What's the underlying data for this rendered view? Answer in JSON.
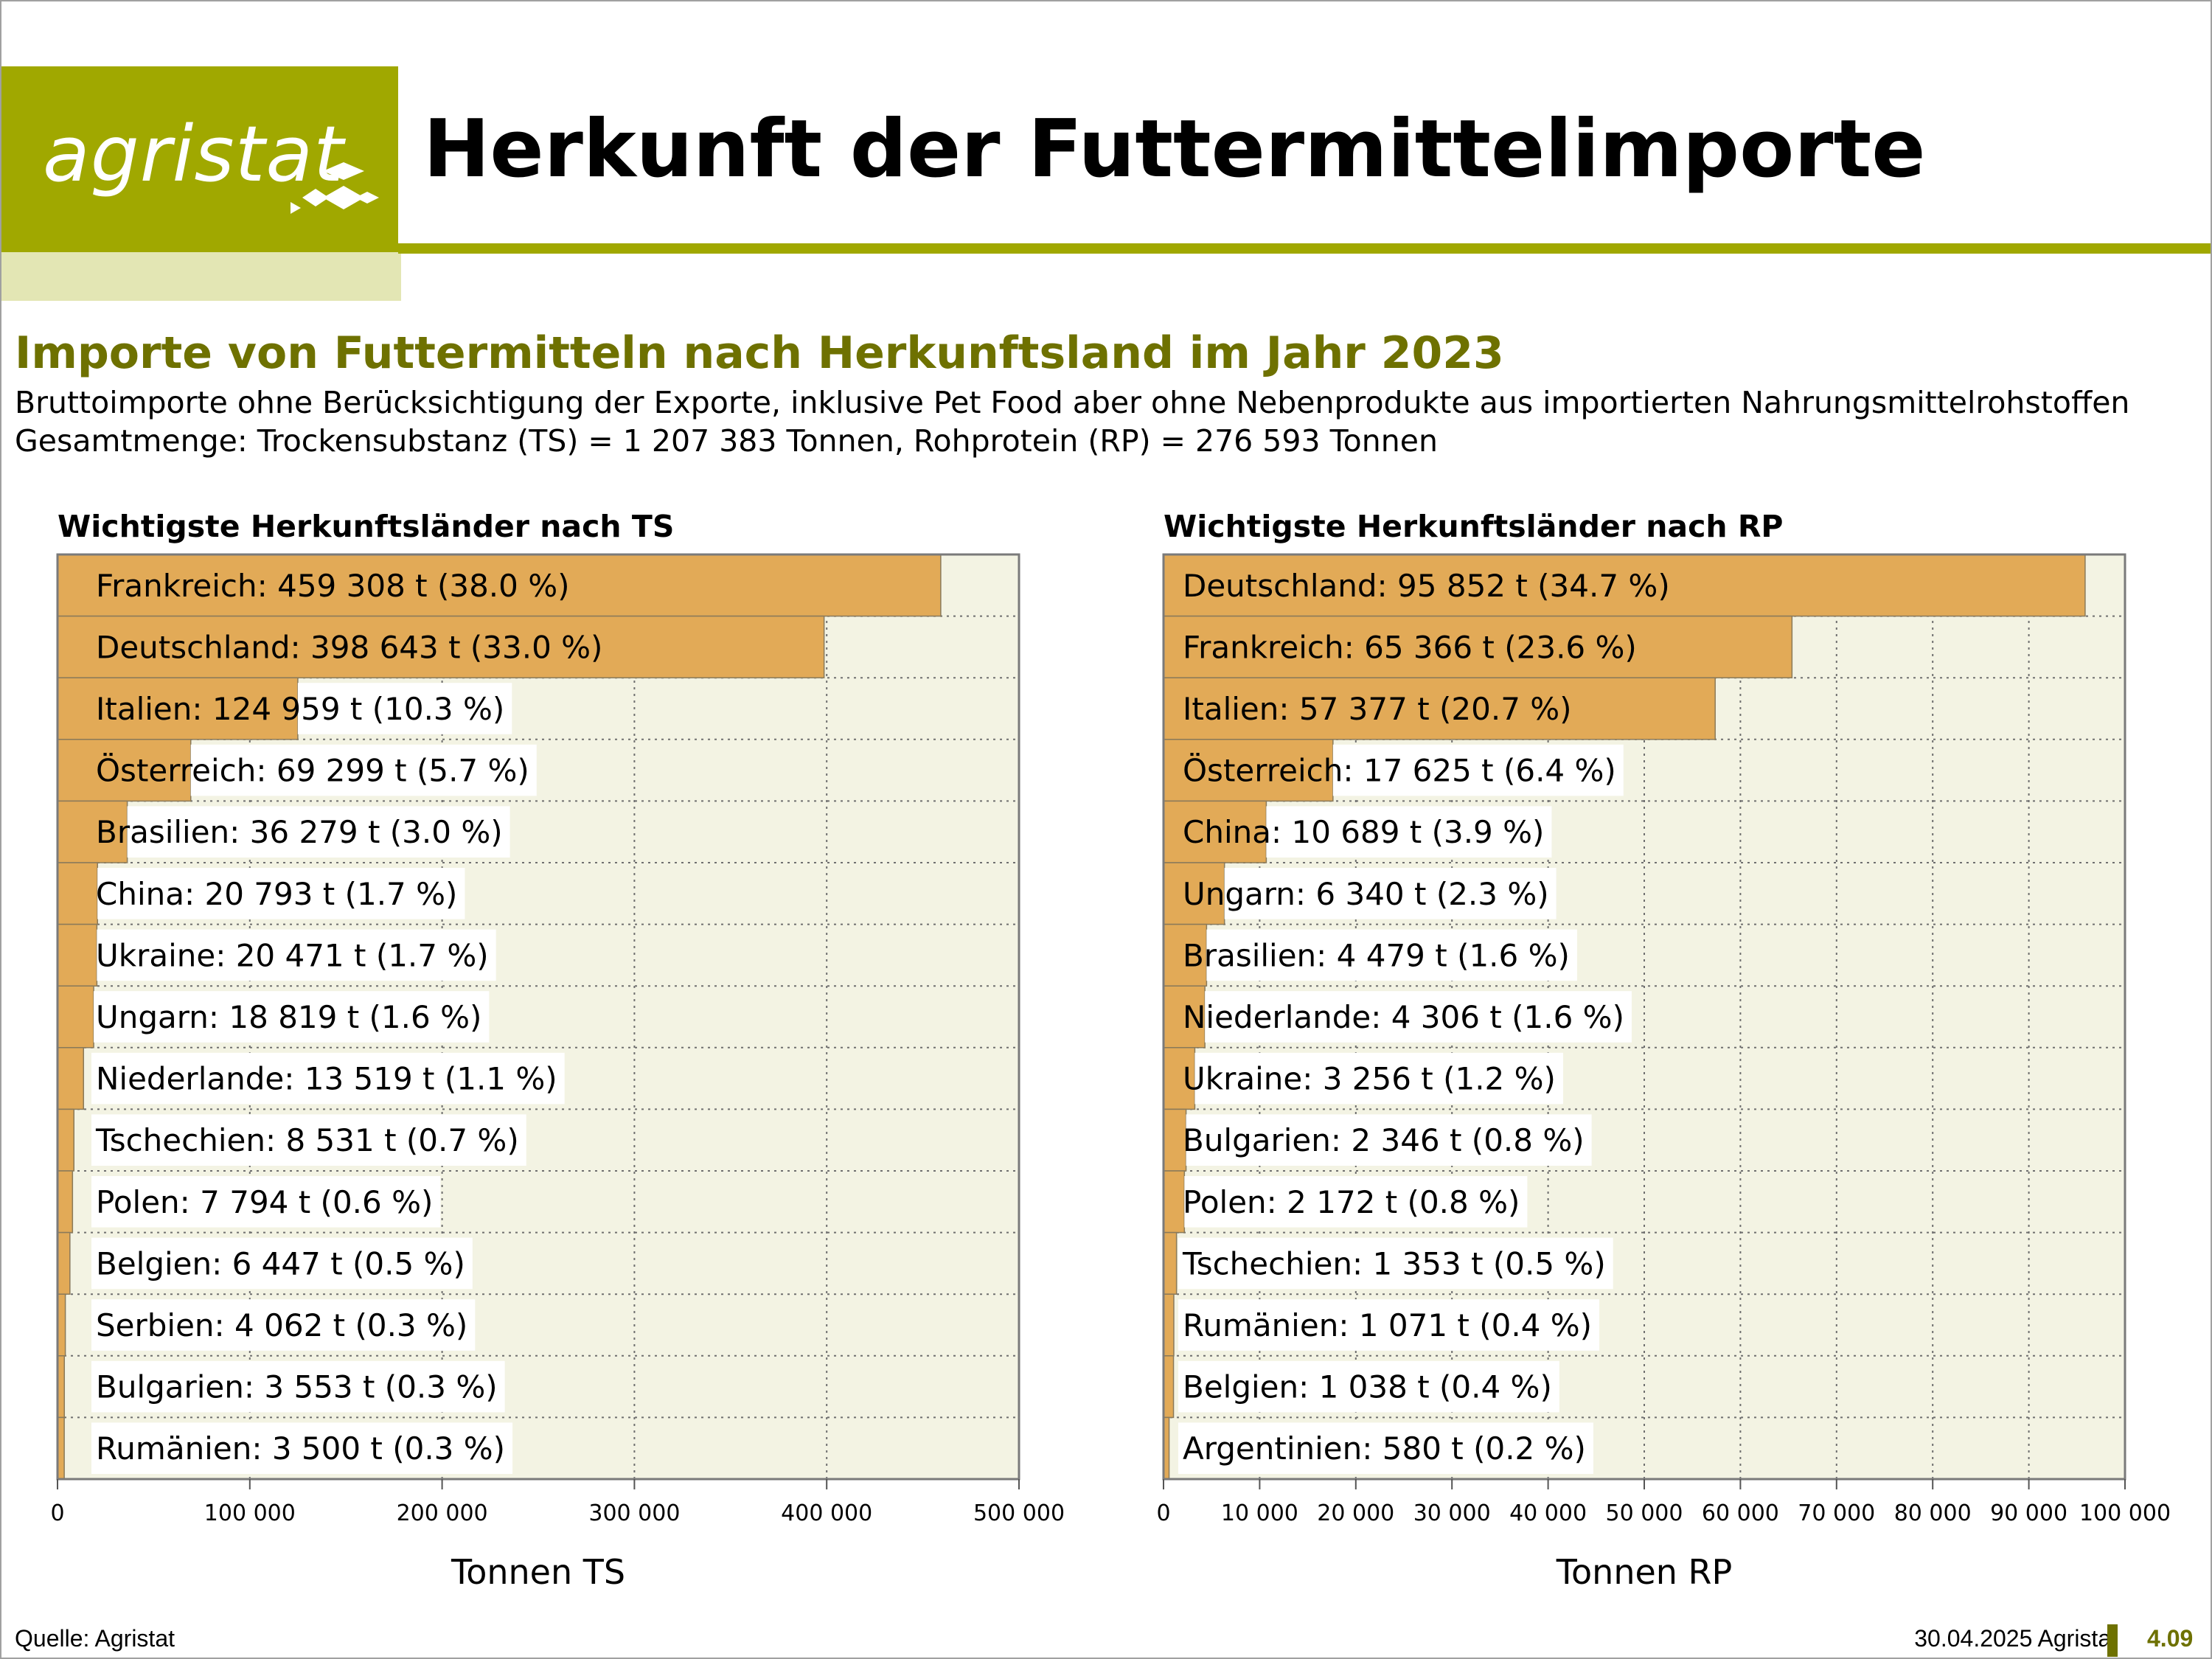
{
  "header": {
    "logo_text": "agristat",
    "title": "Herkunft der Futtermittelimporte"
  },
  "subtitle": "Importe von Futtermitteln nach Herkunftsland im Jahr 2023",
  "description": [
    "Bruttoimporte ohne Berücksichtigung der Exporte, inklusive Pet Food aber ohne Nebenprodukte aus importierten Nahrungsmittelrohstoffen",
    "Gesamtmenge: Trockensubstanz (TS) = 1 207 383 Tonnen, Rohprotein (RP) = 276 593 Tonnen"
  ],
  "footer": {
    "source": "Quelle: Agristat",
    "date": "30.04.2025 Agristat",
    "page": "4.09"
  },
  "colors": {
    "brand": "#a0a800",
    "brand_dark": "#6e7100",
    "bar": "#e2aa57",
    "plot_bg": "#f3f3e3"
  },
  "chart_data": [
    {
      "type": "bar",
      "orientation": "horizontal",
      "title": "Wichtigste Herkunftsländer nach TS",
      "xlabel": "Tonnen TS",
      "xlim": [
        0,
        500000
      ],
      "xticks": [
        0,
        100000,
        200000,
        300000,
        400000,
        500000
      ],
      "xtick_labels": [
        "0",
        "100 000",
        "200 000",
        "300 000",
        "400 000",
        "500 000"
      ],
      "grid": true,
      "categories": [
        "Frankreich",
        "Deutschland",
        "Italien",
        "Österreich",
        "Brasilien",
        "China",
        "Ukraine",
        "Ungarn",
        "Niederlande",
        "Tschechien",
        "Polen",
        "Belgien",
        "Serbien",
        "Bulgarien",
        "Rumänien"
      ],
      "values": [
        459308,
        398643,
        124959,
        69299,
        36279,
        20793,
        20471,
        18819,
        13519,
        8531,
        7794,
        6447,
        4062,
        3553,
        3500
      ],
      "labels": [
        "Frankreich: 459 308 t (38.0 %)",
        "Deutschland: 398 643 t (33.0 %)",
        "Italien: 124 959 t (10.3 %)",
        "Österreich: 69 299 t (5.7 %)",
        "Brasilien: 36 279 t (3.0 %)",
        "China: 20 793 t (1.7 %)",
        "Ukraine: 20 471 t (1.7 %)",
        "Ungarn: 18 819 t (1.6 %)",
        "Niederlande: 13 519 t (1.1 %)",
        "Tschechien: 8 531 t (0.7 %)",
        "Polen: 7 794 t (0.6 %)",
        "Belgien: 6 447 t (0.5 %)",
        "Serbien: 4 062 t (0.3 %)",
        "Bulgarien: 3 553 t (0.3 %)",
        "Rumänien: 3 500 t (0.3 %)"
      ]
    },
    {
      "type": "bar",
      "orientation": "horizontal",
      "title": "Wichtigste Herkunftsländer nach RP",
      "xlabel": "Tonnen RP",
      "xlim": [
        0,
        100000
      ],
      "xticks": [
        0,
        10000,
        20000,
        30000,
        40000,
        50000,
        60000,
        70000,
        80000,
        90000,
        100000
      ],
      "xtick_labels": [
        "0",
        "10 000",
        "20 000",
        "30 000",
        "40 000",
        "50 000",
        "60 000",
        "70 000",
        "80 000",
        "90 000",
        "100 000"
      ],
      "grid": true,
      "categories": [
        "Deutschland",
        "Frankreich",
        "Italien",
        "Österreich",
        "China",
        "Ungarn",
        "Brasilien",
        "Niederlande",
        "Ukraine",
        "Bulgarien",
        "Polen",
        "Tschechien",
        "Rumänien",
        "Belgien",
        "Argentinien"
      ],
      "values": [
        95852,
        65366,
        57377,
        17625,
        10689,
        6340,
        4479,
        4306,
        3256,
        2346,
        2172,
        1353,
        1071,
        1038,
        580
      ],
      "labels": [
        "Deutschland: 95 852 t (34.7 %)",
        "Frankreich: 65 366 t (23.6 %)",
        "Italien: 57 377 t (20.7 %)",
        "Österreich: 17 625 t (6.4 %)",
        "China: 10 689 t (3.9 %)",
        "Ungarn: 6 340 t (2.3 %)",
        "Brasilien: 4 479 t (1.6 %)",
        "Niederlande: 4 306 t (1.6 %)",
        "Ukraine: 3 256 t (1.2 %)",
        "Bulgarien: 2 346 t (0.8 %)",
        "Polen: 2 172 t (0.8 %)",
        "Tschechien: 1 353 t (0.5 %)",
        "Rumänien: 1 071 t (0.4 %)",
        "Belgien: 1 038 t (0.4 %)",
        "Argentinien: 580 t (0.2 %)"
      ]
    }
  ]
}
